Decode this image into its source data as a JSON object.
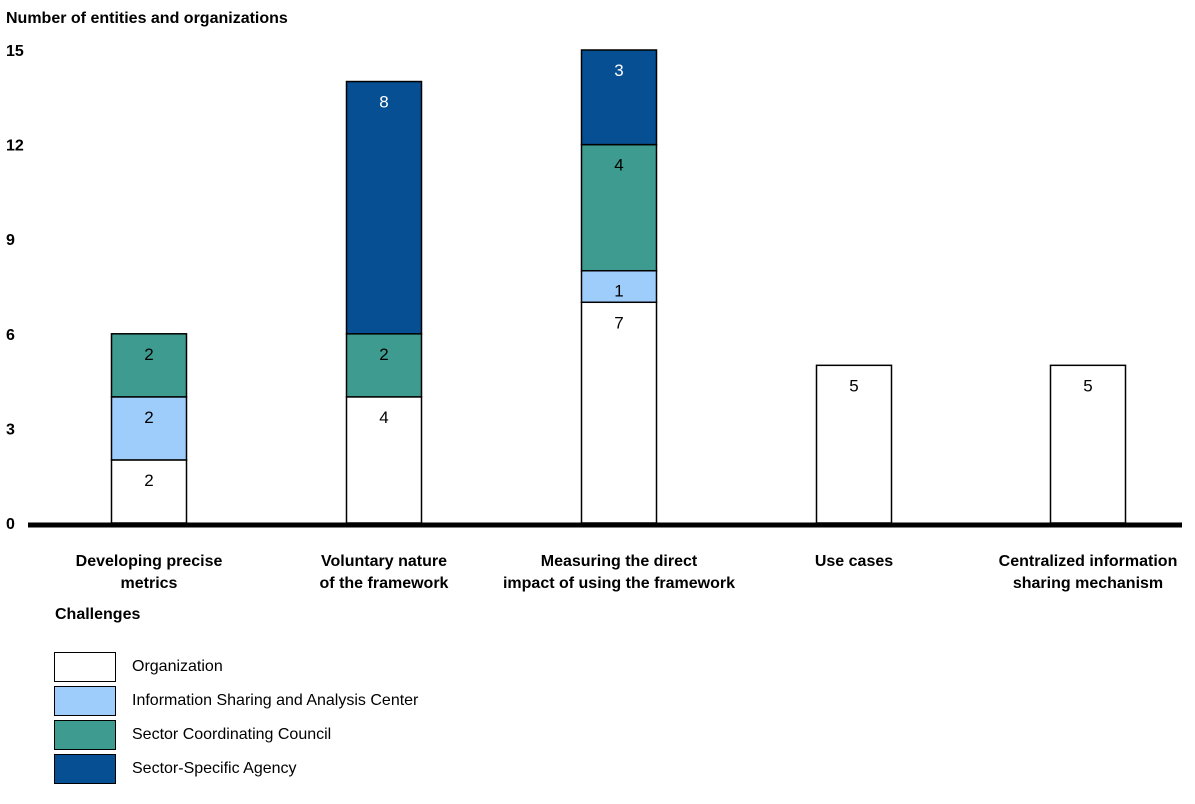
{
  "chart_data": {
    "type": "bar",
    "stacked": true,
    "ylabel": "Number of entities and organizations",
    "xlabel": "Challenges",
    "ylim": [
      0,
      15
    ],
    "yticks": [
      0,
      3,
      6,
      9,
      12,
      15
    ],
    "categories": [
      [
        "Developing precise",
        "metrics"
      ],
      [
        "Voluntary nature",
        "of the framework"
      ],
      [
        "Measuring the direct",
        "impact of using the framework"
      ],
      [
        "Use cases"
      ],
      [
        "Centralized information",
        "sharing mechanism"
      ]
    ],
    "series": [
      {
        "name": "Organization",
        "color": "#ffffff",
        "label_color": "#000000",
        "values": [
          2,
          4,
          7,
          5,
          5
        ]
      },
      {
        "name": "Information Sharing and Analysis Center",
        "color": "#9ecdfb",
        "label_color": "#000000",
        "values": [
          2,
          0,
          1,
          0,
          0
        ]
      },
      {
        "name": "Sector Coordinating Council",
        "color": "#3e9b8f",
        "label_color": "#000000",
        "values": [
          2,
          2,
          4,
          0,
          0
        ]
      },
      {
        "name": "Sector-Specific Agency",
        "color": "#064f92",
        "label_color": "#ffffff",
        "values": [
          0,
          8,
          3,
          0,
          0
        ]
      }
    ],
    "legend_position": "bottom-left",
    "grid": false
  }
}
